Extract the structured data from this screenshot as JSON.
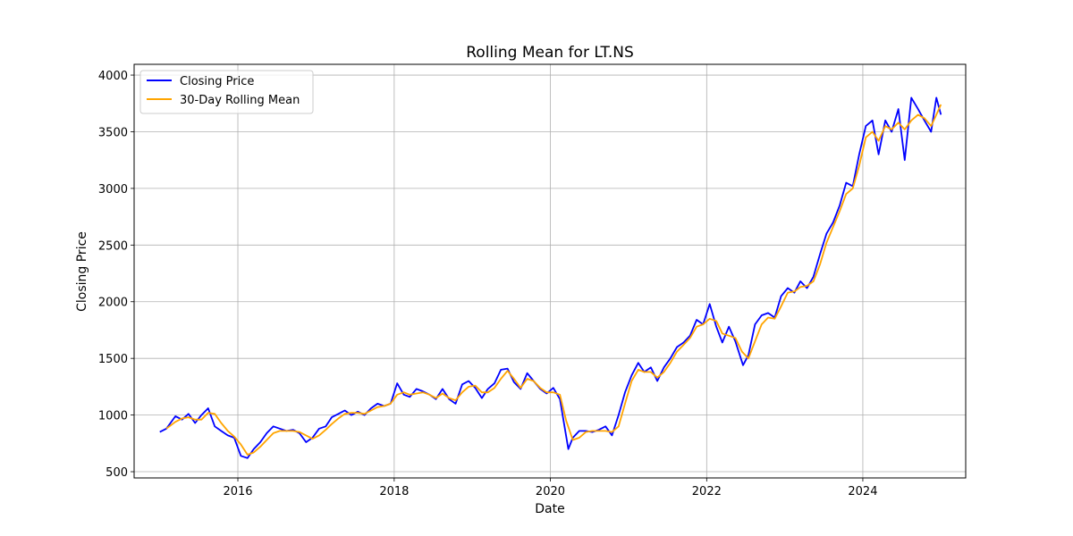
{
  "chart_data": {
    "type": "line",
    "title": "Rolling Mean for LT.NS",
    "xlabel": "Date",
    "ylabel": "Closing Price",
    "xlim": [
      "2014-09-03",
      "2025-04-26"
    ],
    "ylim": [
      445,
      4095
    ],
    "x_ticks": [
      "2016",
      "2018",
      "2020",
      "2022",
      "2024"
    ],
    "y_ticks": [
      "500",
      "1000",
      "1500",
      "2000",
      "2500",
      "3000",
      "3500",
      "4000"
    ],
    "grid": true,
    "legend_position": "upper-left",
    "series": [
      {
        "name": "Closing Price",
        "color": "#0000ff",
        "x": [
          "2015-01-01",
          "2015-02-01",
          "2015-03-15",
          "2015-04-15",
          "2015-05-15",
          "2015-06-15",
          "2015-07-15",
          "2015-08-15",
          "2015-09-15",
          "2015-10-15",
          "2015-11-15",
          "2015-12-15",
          "2016-01-15",
          "2016-02-15",
          "2016-03-15",
          "2016-04-15",
          "2016-05-15",
          "2016-06-15",
          "2016-07-15",
          "2016-08-15",
          "2016-09-15",
          "2016-10-15",
          "2016-11-15",
          "2016-12-15",
          "2017-01-15",
          "2017-02-15",
          "2017-03-15",
          "2017-04-15",
          "2017-05-15",
          "2017-06-15",
          "2017-07-15",
          "2017-08-15",
          "2017-09-15",
          "2017-10-15",
          "2017-11-15",
          "2017-12-15",
          "2018-01-15",
          "2018-02-15",
          "2018-03-15",
          "2018-04-15",
          "2018-05-15",
          "2018-06-15",
          "2018-07-15",
          "2018-08-15",
          "2018-09-15",
          "2018-10-15",
          "2018-11-15",
          "2018-12-15",
          "2019-01-15",
          "2019-02-15",
          "2019-03-15",
          "2019-04-15",
          "2019-05-15",
          "2019-06-15",
          "2019-07-15",
          "2019-08-15",
          "2019-09-15",
          "2019-10-15",
          "2019-11-15",
          "2019-12-15",
          "2020-01-15",
          "2020-02-15",
          "2020-03-25",
          "2020-04-15",
          "2020-05-15",
          "2020-06-15",
          "2020-07-15",
          "2020-08-15",
          "2020-09-15",
          "2020-10-15",
          "2020-11-15",
          "2020-12-15",
          "2021-01-15",
          "2021-02-15",
          "2021-03-15",
          "2021-04-15",
          "2021-05-15",
          "2021-06-15",
          "2021-07-15",
          "2021-08-15",
          "2021-09-15",
          "2021-10-15",
          "2021-11-15",
          "2021-12-15",
          "2022-01-15",
          "2022-02-15",
          "2022-03-15",
          "2022-04-15",
          "2022-05-15",
          "2022-06-20",
          "2022-07-15",
          "2022-08-15",
          "2022-09-15",
          "2022-10-15",
          "2022-11-15",
          "2022-12-15",
          "2023-01-15",
          "2023-02-15",
          "2023-03-15",
          "2023-04-15",
          "2023-05-15",
          "2023-06-15",
          "2023-07-15",
          "2023-08-15",
          "2023-09-15",
          "2023-10-15",
          "2023-11-15",
          "2023-12-15",
          "2024-01-15",
          "2024-02-15",
          "2024-03-15",
          "2024-04-15",
          "2024-05-15",
          "2024-06-15",
          "2024-07-15",
          "2024-08-15",
          "2024-09-15",
          "2024-10-15",
          "2024-11-15",
          "2024-12-10",
          "2024-12-31"
        ],
        "values": [
          850,
          880,
          990,
          960,
          1010,
          930,
          1000,
          1060,
          900,
          860,
          820,
          800,
          640,
          620,
          700,
          760,
          840,
          900,
          880,
          860,
          870,
          840,
          760,
          800,
          880,
          900,
          980,
          1010,
          1040,
          1000,
          1030,
          1000,
          1060,
          1100,
          1080,
          1100,
          1280,
          1180,
          1160,
          1230,
          1210,
          1180,
          1140,
          1230,
          1140,
          1100,
          1270,
          1300,
          1240,
          1150,
          1230,
          1280,
          1400,
          1410,
          1290,
          1230,
          1370,
          1300,
          1230,
          1190,
          1240,
          1140,
          700,
          800,
          860,
          860,
          850,
          870,
          900,
          820,
          1000,
          1200,
          1350,
          1460,
          1380,
          1420,
          1300,
          1420,
          1500,
          1600,
          1640,
          1700,
          1840,
          1800,
          1980,
          1780,
          1640,
          1780,
          1650,
          1440,
          1530,
          1800,
          1880,
          1900,
          1860,
          2050,
          2120,
          2080,
          2180,
          2120,
          2220,
          2420,
          2600,
          2700,
          2850,
          3050,
          3020,
          3300,
          3550,
          3600,
          3300,
          3600,
          3500,
          3700,
          3250,
          3800,
          3700,
          3600,
          3500,
          3800,
          3650
        ]
      },
      {
        "name": "30-Day Rolling Mean",
        "color": "#ffa500",
        "x": [
          "2015-02-01",
          "2015-03-15",
          "2015-04-15",
          "2015-05-15",
          "2015-06-15",
          "2015-07-15",
          "2015-08-15",
          "2015-09-15",
          "2015-10-15",
          "2015-11-15",
          "2015-12-15",
          "2016-01-15",
          "2016-02-15",
          "2016-03-15",
          "2016-04-15",
          "2016-05-15",
          "2016-06-15",
          "2016-07-15",
          "2016-08-15",
          "2016-09-15",
          "2016-10-15",
          "2016-11-15",
          "2016-12-15",
          "2017-01-15",
          "2017-02-15",
          "2017-03-15",
          "2017-04-15",
          "2017-05-15",
          "2017-06-15",
          "2017-07-15",
          "2017-08-15",
          "2017-09-15",
          "2017-10-15",
          "2017-11-15",
          "2017-12-15",
          "2018-01-15",
          "2018-02-15",
          "2018-03-15",
          "2018-04-15",
          "2018-05-15",
          "2018-06-15",
          "2018-07-15",
          "2018-08-15",
          "2018-09-15",
          "2018-10-15",
          "2018-11-15",
          "2018-12-15",
          "2019-01-15",
          "2019-02-15",
          "2019-03-15",
          "2019-04-15",
          "2019-05-15",
          "2019-06-15",
          "2019-07-15",
          "2019-08-15",
          "2019-09-15",
          "2019-10-15",
          "2019-11-15",
          "2019-12-15",
          "2020-01-15",
          "2020-02-15",
          "2020-03-15",
          "2020-04-15",
          "2020-05-15",
          "2020-06-15",
          "2020-07-15",
          "2020-08-15",
          "2020-09-15",
          "2020-10-15",
          "2020-11-15",
          "2020-12-15",
          "2021-01-15",
          "2021-02-15",
          "2021-03-15",
          "2021-04-15",
          "2021-05-15",
          "2021-06-15",
          "2021-07-15",
          "2021-08-15",
          "2021-09-15",
          "2021-10-15",
          "2021-11-15",
          "2021-12-15",
          "2022-01-15",
          "2022-02-15",
          "2022-03-15",
          "2022-04-15",
          "2022-05-15",
          "2022-06-15",
          "2022-07-15",
          "2022-08-15",
          "2022-09-15",
          "2022-10-15",
          "2022-11-15",
          "2022-12-15",
          "2023-01-15",
          "2023-02-15",
          "2023-03-15",
          "2023-04-15",
          "2023-05-15",
          "2023-06-15",
          "2023-07-15",
          "2023-08-15",
          "2023-09-15",
          "2023-10-15",
          "2023-11-15",
          "2023-12-15",
          "2024-01-15",
          "2024-02-15",
          "2024-03-15",
          "2024-04-15",
          "2024-05-15",
          "2024-06-15",
          "2024-07-15",
          "2024-08-15",
          "2024-09-15",
          "2024-10-15",
          "2024-11-15",
          "2024-12-10",
          "2024-12-31"
        ],
        "values": [
          880,
          940,
          970,
          980,
          960,
          960,
          1020,
          1010,
          930,
          860,
          810,
          740,
          650,
          670,
          720,
          780,
          840,
          860,
          860,
          860,
          850,
          820,
          790,
          820,
          870,
          920,
          970,
          1010,
          1020,
          1020,
          1010,
          1040,
          1070,
          1080,
          1100,
          1180,
          1200,
          1180,
          1190,
          1200,
          1180,
          1150,
          1190,
          1150,
          1130,
          1200,
          1250,
          1260,
          1200,
          1200,
          1240,
          1320,
          1390,
          1320,
          1240,
          1320,
          1300,
          1240,
          1200,
          1200,
          1180,
          950,
          780,
          800,
          850,
          860,
          860,
          860,
          850,
          900,
          1100,
          1300,
          1400,
          1380,
          1380,
          1330,
          1380,
          1460,
          1560,
          1620,
          1680,
          1780,
          1800,
          1850,
          1830,
          1720,
          1700,
          1680,
          1560,
          1500,
          1650,
          1800,
          1860,
          1850,
          1960,
          2080,
          2090,
          2130,
          2140,
          2180,
          2330,
          2520,
          2660,
          2800,
          2950,
          3000,
          3200,
          3450,
          3500,
          3420,
          3550,
          3520,
          3580,
          3520,
          3600,
          3650,
          3620,
          3550,
          3650,
          3740
        ]
      }
    ]
  }
}
